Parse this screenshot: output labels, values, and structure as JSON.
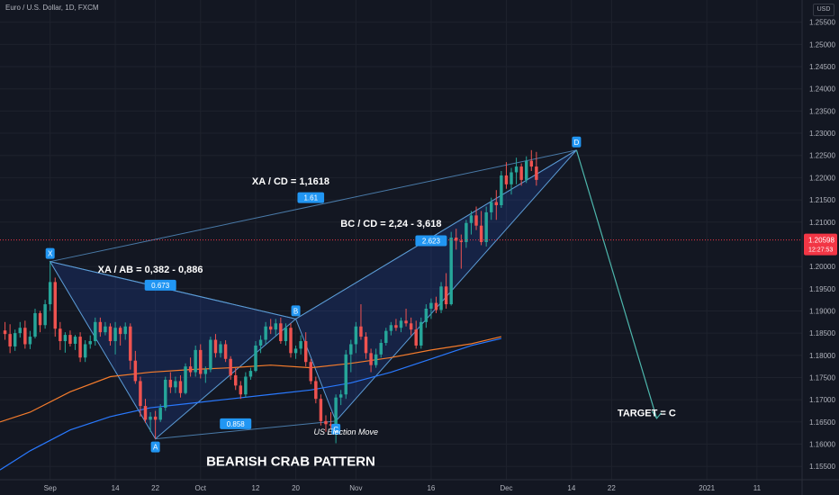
{
  "header": {
    "symbol_title": "Euro / U.S. Dollar, 1D, FXCM",
    "currency": "USD"
  },
  "colors": {
    "background": "#131722",
    "bull": "#26a69a",
    "bear": "#ef5350",
    "pattern_fill": "rgba(41,98,255,0.16)",
    "pattern_line": "#5b9bd5",
    "ema_orange": "#f57c2c",
    "sma_blue": "#2979ff",
    "projection": "#4db6ac",
    "label_bg": "#2196f3",
    "price_tag": "#f23645"
  },
  "chart_data": {
    "type": "candlestick",
    "title": "BEARISH CRAB PATTERN",
    "y_axis": {
      "ticks": [
        1.255,
        1.25,
        1.245,
        1.24,
        1.235,
        1.23,
        1.225,
        1.22,
        1.215,
        1.21,
        1.2,
        1.195,
        1.19,
        1.185,
        1.18,
        1.175,
        1.17,
        1.165,
        1.16,
        1.155
      ],
      "tick_labels": [
        "1.25500",
        "1.25000",
        "1.24500",
        "1.24000",
        "1.23500",
        "1.23000",
        "1.22500",
        "1.22000",
        "1.21500",
        "1.21000",
        "1.20000",
        "1.19500",
        "1.19000",
        "1.18500",
        "1.18000",
        "1.17500",
        "1.17000",
        "1.16500",
        "1.16000",
        "1.15500"
      ],
      "range": [
        1.152,
        1.26
      ]
    },
    "x_axis": {
      "ticks": [
        "Sep",
        "14",
        "22",
        "Oct",
        "12",
        "20",
        "Nov",
        "16",
        "Dec",
        "14",
        "22",
        "2021",
        "11"
      ],
      "tick_days": [
        0,
        13,
        21,
        30,
        41,
        49,
        61,
        76,
        91,
        104,
        112,
        131,
        141
      ],
      "range": [
        -10,
        150
      ]
    },
    "last_price": {
      "value": 1.20598,
      "label": "1.20598",
      "countdown": "12:27:53"
    },
    "candles": [
      [
        -9,
        1.1856,
        1.1875,
        1.1835,
        1.1848
      ],
      [
        -8,
        1.1848,
        1.187,
        1.1805,
        1.182
      ],
      [
        -7,
        1.182,
        1.1858,
        1.181,
        1.185
      ],
      [
        -6,
        1.185,
        1.1875,
        1.184,
        1.1862
      ],
      [
        -5,
        1.1862,
        1.1878,
        1.1815,
        1.1825
      ],
      [
        -4,
        1.1825,
        1.1855,
        1.1814,
        1.1842
      ],
      [
        -3,
        1.1842,
        1.1905,
        1.1838,
        1.1895
      ],
      [
        -2,
        1.1895,
        1.19,
        1.1852,
        1.1868
      ],
      [
        -1,
        1.1868,
        1.1925,
        1.186,
        1.1915
      ],
      [
        0,
        1.1915,
        1.2011,
        1.19,
        1.1965
      ],
      [
        1,
        1.1965,
        1.1975,
        1.1842,
        1.186
      ],
      [
        2,
        1.186,
        1.1875,
        1.1812,
        1.1832
      ],
      [
        3,
        1.1832,
        1.1852,
        1.1806,
        1.1846
      ],
      [
        4,
        1.1846,
        1.1856,
        1.182,
        1.1826
      ],
      [
        5,
        1.1826,
        1.1846,
        1.1812,
        1.1842
      ],
      [
        6,
        1.1842,
        1.1852,
        1.1785,
        1.1795
      ],
      [
        7,
        1.1795,
        1.1834,
        1.1785,
        1.1825
      ],
      [
        8,
        1.1825,
        1.1845,
        1.1815,
        1.1832
      ],
      [
        9,
        1.1832,
        1.1885,
        1.1822,
        1.1875
      ],
      [
        10,
        1.1875,
        1.1885,
        1.1842,
        1.1852
      ],
      [
        11,
        1.1852,
        1.1875,
        1.1845,
        1.1865
      ],
      [
        12,
        1.1865,
        1.1872,
        1.1822,
        1.1832
      ],
      [
        13,
        1.1832,
        1.1875,
        1.1802,
        1.1862
      ],
      [
        14,
        1.1862,
        1.1866,
        1.1822,
        1.1848
      ],
      [
        15,
        1.1848,
        1.1874,
        1.1835,
        1.1865
      ],
      [
        16,
        1.1865,
        1.1872,
        1.1768,
        1.1788
      ],
      [
        17,
        1.1788,
        1.181,
        1.1736,
        1.1742
      ],
      [
        18,
        1.1742,
        1.1752,
        1.1662,
        1.1686
      ],
      [
        19,
        1.1686,
        1.1702,
        1.1648,
        1.1655
      ],
      [
        20,
        1.1655,
        1.1672,
        1.1628,
        1.1662
      ],
      [
        21,
        1.1662,
        1.1675,
        1.1612,
        1.1655
      ],
      [
        22,
        1.1655,
        1.169,
        1.165,
        1.1682
      ],
      [
        23,
        1.1682,
        1.1752,
        1.1675,
        1.1745
      ],
      [
        24,
        1.1745,
        1.1762,
        1.1715,
        1.1728
      ],
      [
        25,
        1.1728,
        1.1752,
        1.1715,
        1.1742
      ],
      [
        26,
        1.1742,
        1.1755,
        1.1705,
        1.1715
      ],
      [
        27,
        1.1715,
        1.1782,
        1.1712,
        1.1775
      ],
      [
        28,
        1.1775,
        1.1795,
        1.1752,
        1.1762
      ],
      [
        29,
        1.1762,
        1.1822,
        1.1752,
        1.1812
      ],
      [
        30,
        1.1812,
        1.1825,
        1.1748,
        1.1758
      ],
      [
        31,
        1.1758,
        1.1775,
        1.1738,
        1.1768
      ],
      [
        32,
        1.1768,
        1.1842,
        1.1762,
        1.1835
      ],
      [
        33,
        1.1835,
        1.1848,
        1.1795,
        1.1805
      ],
      [
        34,
        1.1805,
        1.1832,
        1.1795,
        1.1825
      ],
      [
        35,
        1.1825,
        1.1834,
        1.1785,
        1.1792
      ],
      [
        36,
        1.1792,
        1.1798,
        1.1745,
        1.1755
      ],
      [
        37,
        1.1755,
        1.1772,
        1.1722,
        1.1732
      ],
      [
        38,
        1.1732,
        1.1742,
        1.1702,
        1.1712
      ],
      [
        39,
        1.1712,
        1.1762,
        1.1705,
        1.1752
      ],
      [
        40,
        1.1752,
        1.1772,
        1.1745,
        1.1765
      ],
      [
        41,
        1.1765,
        1.1832,
        1.1762,
        1.1822
      ],
      [
        42,
        1.1822,
        1.1845,
        1.1805,
        1.1835
      ],
      [
        43,
        1.1835,
        1.1875,
        1.1825,
        1.1865
      ],
      [
        44,
        1.1865,
        1.1882,
        1.1848,
        1.1858
      ],
      [
        45,
        1.1858,
        1.1882,
        1.1845,
        1.1872
      ],
      [
        46,
        1.1872,
        1.1885,
        1.1826,
        1.1832
      ],
      [
        47,
        1.1832,
        1.1872,
        1.1822,
        1.1862
      ],
      [
        48,
        1.1862,
        1.1872,
        1.1795,
        1.1805
      ],
      [
        49,
        1.1805,
        1.1822,
        1.1792,
        1.1815
      ],
      [
        50,
        1.1815,
        1.1845,
        1.1802,
        1.1832
      ],
      [
        51,
        1.1832,
        1.1852,
        1.1775,
        1.1785
      ],
      [
        52,
        1.1785,
        1.1792,
        1.1735,
        1.1742
      ],
      [
        53,
        1.1742,
        1.1752,
        1.1692,
        1.1702
      ],
      [
        54,
        1.1702,
        1.1712,
        1.1642,
        1.1652
      ],
      [
        55,
        1.1652,
        1.1665,
        1.1628,
        1.1645
      ],
      [
        56,
        1.1645,
        1.1672,
        1.1635,
        1.1642
      ],
      [
        57,
        1.1642,
        1.1712,
        1.1602,
        1.1705
      ],
      [
        58,
        1.1705,
        1.1722,
        1.1688,
        1.1712
      ],
      [
        59,
        1.1712,
        1.1812,
        1.1702,
        1.1802
      ],
      [
        60,
        1.1802,
        1.1835,
        1.1762,
        1.1825
      ],
      [
        61,
        1.1825,
        1.1875,
        1.1805,
        1.1865
      ],
      [
        62,
        1.1865,
        1.1915,
        1.1835,
        1.1842
      ],
      [
        63,
        1.1842,
        1.1852,
        1.1792,
        1.1805
      ],
      [
        64,
        1.1805,
        1.1815,
        1.1762,
        1.1778
      ],
      [
        65,
        1.1778,
        1.1815,
        1.1772,
        1.1802
      ],
      [
        66,
        1.1802,
        1.1836,
        1.1795,
        1.1828
      ],
      [
        67,
        1.1828,
        1.1862,
        1.1822,
        1.1855
      ],
      [
        68,
        1.1855,
        1.1875,
        1.1845,
        1.1868
      ],
      [
        69,
        1.1868,
        1.1882,
        1.1855,
        1.1862
      ],
      [
        70,
        1.1862,
        1.1885,
        1.1852,
        1.1878
      ],
      [
        71,
        1.1878,
        1.1905,
        1.1865,
        1.1872
      ],
      [
        72,
        1.1872,
        1.1885,
        1.1845,
        1.1858
      ],
      [
        73,
        1.1858,
        1.1878,
        1.1815,
        1.1822
      ],
      [
        74,
        1.1822,
        1.1885,
        1.1815,
        1.1875
      ],
      [
        75,
        1.1875,
        1.1915,
        1.1862,
        1.1905
      ],
      [
        76,
        1.1905,
        1.1928,
        1.1882,
        1.1918
      ],
      [
        77,
        1.1918,
        1.1932,
        1.1895,
        1.1902
      ],
      [
        78,
        1.1902,
        1.1965,
        1.1895,
        1.1955
      ],
      [
        79,
        1.1955,
        1.1985,
        1.1905,
        1.1915
      ],
      [
        80,
        1.1915,
        1.2078,
        1.1912,
        1.2065
      ],
      [
        81,
        1.2065,
        1.2085,
        1.2038,
        1.2058
      ],
      [
        82,
        1.2058,
        1.2072,
        1.1995,
        1.2055
      ],
      [
        83,
        1.2055,
        1.2105,
        1.2042,
        1.2098
      ],
      [
        84,
        1.2098,
        1.2125,
        1.2072,
        1.2115
      ],
      [
        85,
        1.2115,
        1.2135,
        1.2082,
        1.2092
      ],
      [
        86,
        1.2092,
        1.2125,
        1.2048,
        1.2055
      ],
      [
        87,
        1.2055,
        1.2135,
        1.2045,
        1.2122
      ],
      [
        88,
        1.2122,
        1.2155,
        1.2105,
        1.2145
      ],
      [
        89,
        1.2145,
        1.2172,
        1.2105,
        1.2138
      ],
      [
        90,
        1.2138,
        1.2215,
        1.2132,
        1.2205
      ],
      [
        91,
        1.2205,
        1.2235,
        1.2175,
        1.2185
      ],
      [
        92,
        1.2185,
        1.2222,
        1.2162,
        1.2212
      ],
      [
        93,
        1.2212,
        1.2245,
        1.2185,
        1.2225
      ],
      [
        94,
        1.2225,
        1.2232,
        1.2182,
        1.2195
      ],
      [
        95,
        1.2195,
        1.2248,
        1.2188,
        1.2238
      ],
      [
        96,
        1.2238,
        1.2262,
        1.2215,
        1.2225
      ],
      [
        97,
        1.2225,
        1.2258,
        1.2182,
        1.2195
      ]
    ],
    "series": [
      {
        "name": "",
        "type": "line",
        "color": "#f57c2c",
        "points": [
          [
            -10,
            1.165
          ],
          [
            -4,
            1.1672
          ],
          [
            4,
            1.1718
          ],
          [
            12,
            1.1752
          ],
          [
            20,
            1.1762
          ],
          [
            28,
            1.1768
          ],
          [
            36,
            1.1772
          ],
          [
            44,
            1.1778
          ],
          [
            52,
            1.1772
          ],
          [
            60,
            1.1782
          ],
          [
            68,
            1.1795
          ],
          [
            76,
            1.1812
          ],
          [
            84,
            1.1826
          ],
          [
            90,
            1.1842
          ]
        ]
      },
      {
        "name": "",
        "type": "line",
        "color": "#2979ff",
        "points": [
          [
            -10,
            1.1542
          ],
          [
            -4,
            1.1585
          ],
          [
            4,
            1.1632
          ],
          [
            12,
            1.1662
          ],
          [
            20,
            1.1682
          ],
          [
            28,
            1.1692
          ],
          [
            36,
            1.1702
          ],
          [
            44,
            1.1712
          ],
          [
            52,
            1.1722
          ],
          [
            60,
            1.1738
          ],
          [
            68,
            1.1762
          ],
          [
            76,
            1.1792
          ],
          [
            84,
            1.1822
          ],
          [
            90,
            1.1838
          ]
        ]
      }
    ],
    "pattern_points": [
      {
        "label": "X",
        "day": 0,
        "price": 1.2011,
        "pos": "above"
      },
      {
        "label": "A",
        "day": 21,
        "price": 1.1612,
        "pos": "below"
      },
      {
        "label": "B",
        "day": 49,
        "price": 1.1882,
        "pos": "above"
      },
      {
        "label": "C",
        "day": 57,
        "price": 1.1652,
        "pos": "below"
      },
      {
        "label": "D",
        "day": 105,
        "price": 1.2262,
        "pos": "above"
      }
    ],
    "ratio_labels": [
      {
        "text": "1.61",
        "day": 52,
        "price": 1.2155
      },
      {
        "text": "0.673",
        "day": 22,
        "price": 1.1958
      },
      {
        "text": "0.858",
        "day": 37,
        "price": 1.1646
      },
      {
        "text": "2.623",
        "day": 76,
        "price": 1.2058
      }
    ],
    "projection": {
      "from": [
        105,
        1.2262
      ],
      "to": [
        121,
        1.1658
      ]
    },
    "annotations": [
      {
        "text": "XA / CD = 1,1618",
        "day": 48,
        "price": 1.2192,
        "size": 11,
        "weight": "bold",
        "style": "normal"
      },
      {
        "text": "BC / CD = 2,24 - 3,618",
        "day": 68,
        "price": 1.2097,
        "size": 11,
        "weight": "bold",
        "style": "normal"
      },
      {
        "text": "XA / AB = 0,382 - 0,886",
        "day": 20,
        "price": 1.1994,
        "size": 11,
        "weight": "bold",
        "style": "normal"
      },
      {
        "text": "TARGET = C",
        "day": 119,
        "price": 1.1671,
        "size": 11,
        "weight": "bold",
        "style": "normal"
      },
      {
        "text": "US Election Move",
        "day": 59,
        "price": 1.1628,
        "size": 9,
        "weight": "normal",
        "style": "italic"
      },
      {
        "text": "BEARISH CRAB PATTERN",
        "day": 48,
        "price": 1.1562,
        "size": 15,
        "weight": "bold",
        "style": "normal"
      }
    ]
  }
}
